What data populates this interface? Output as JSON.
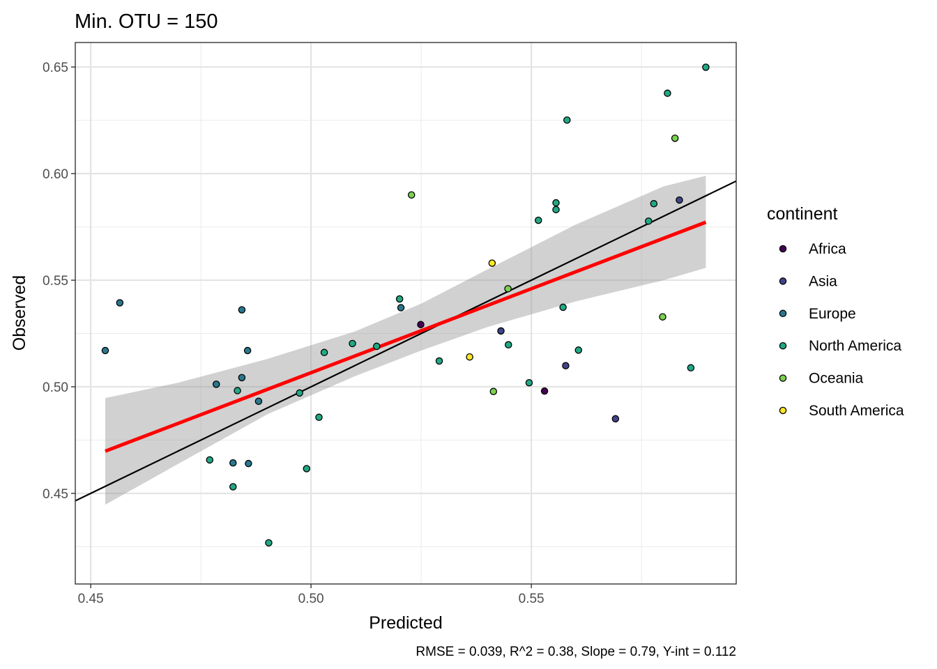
{
  "chart_data": {
    "type": "scatter",
    "title": "Min. OTU = 150",
    "xlabel": "Predicted",
    "ylabel": "Observed",
    "caption": "RMSE = 0.039, R^2 = 0.38, Slope = 0.79, Y-int = 0.112",
    "xlim": [
      0.4465,
      0.5965
    ],
    "ylim": [
      0.4075,
      0.6615
    ],
    "x_ticks": [
      0.45,
      0.5,
      0.55
    ],
    "x_tick_labels": [
      "0.45",
      "0.50",
      "0.55"
    ],
    "y_ticks": [
      0.45,
      0.5,
      0.55,
      0.6,
      0.65
    ],
    "y_tick_labels": [
      "0.45",
      "0.50",
      "0.55",
      "0.60",
      "0.65"
    ],
    "grid": true,
    "legend": {
      "title": "continent",
      "placement": "right",
      "entries": [
        {
          "name": "Africa",
          "color": "#440154"
        },
        {
          "name": "Asia",
          "color": "#414487"
        },
        {
          "name": "Europe",
          "color": "#2a788e"
        },
        {
          "name": "North America",
          "color": "#22a884"
        },
        {
          "name": "Oceania",
          "color": "#7ad151"
        },
        {
          "name": "South America",
          "color": "#fde725"
        }
      ]
    },
    "reference_line": {
      "slope": 1,
      "intercept": 0,
      "color": "#000000"
    },
    "fit_line": {
      "x": [
        0.4533,
        0.5896
      ],
      "y": [
        0.4698,
        0.5772
      ],
      "color": "#ff0000"
    },
    "confidence_band": {
      "x": [
        0.4533,
        0.47,
        0.49,
        0.51,
        0.525,
        0.54,
        0.56,
        0.58,
        0.5896
      ],
      "lower": [
        0.4447,
        0.464,
        0.487,
        0.505,
        0.517,
        0.528,
        0.54,
        0.55,
        0.5558
      ],
      "upper": [
        0.4947,
        0.502,
        0.513,
        0.526,
        0.539,
        0.555,
        0.576,
        0.594,
        0.599
      ],
      "color": "#999999"
    },
    "points": [
      {
        "x": 0.4533,
        "y": 0.517,
        "group": "Europe"
      },
      {
        "x": 0.4566,
        "y": 0.5394,
        "group": "Europe"
      },
      {
        "x": 0.477,
        "y": 0.4657,
        "group": "North America"
      },
      {
        "x": 0.4785,
        "y": 0.5012,
        "group": "Europe"
      },
      {
        "x": 0.4823,
        "y": 0.4643,
        "group": "Europe"
      },
      {
        "x": 0.4823,
        "y": 0.4531,
        "group": "North America"
      },
      {
        "x": 0.4833,
        "y": 0.4982,
        "group": "North America"
      },
      {
        "x": 0.4843,
        "y": 0.5361,
        "group": "Europe"
      },
      {
        "x": 0.4843,
        "y": 0.5043,
        "group": "Europe"
      },
      {
        "x": 0.4856,
        "y": 0.517,
        "group": "Europe"
      },
      {
        "x": 0.4858,
        "y": 0.464,
        "group": "Europe"
      },
      {
        "x": 0.4881,
        "y": 0.4932,
        "group": "Europe"
      },
      {
        "x": 0.4904,
        "y": 0.4268,
        "group": "North America"
      },
      {
        "x": 0.4974,
        "y": 0.4971,
        "group": "North America"
      },
      {
        "x": 0.499,
        "y": 0.4616,
        "group": "North America"
      },
      {
        "x": 0.5018,
        "y": 0.4857,
        "group": "North America"
      },
      {
        "x": 0.503,
        "y": 0.5161,
        "group": "North America"
      },
      {
        "x": 0.5094,
        "y": 0.5203,
        "group": "North America"
      },
      {
        "x": 0.5149,
        "y": 0.519,
        "group": "North America"
      },
      {
        "x": 0.5201,
        "y": 0.5412,
        "group": "North America"
      },
      {
        "x": 0.5204,
        "y": 0.5371,
        "group": "Europe"
      },
      {
        "x": 0.5228,
        "y": 0.59,
        "group": "Oceania"
      },
      {
        "x": 0.5249,
        "y": 0.5292,
        "group": "Africa"
      },
      {
        "x": 0.5291,
        "y": 0.5121,
        "group": "North America"
      },
      {
        "x": 0.536,
        "y": 0.514,
        "group": "South America"
      },
      {
        "x": 0.5411,
        "y": 0.558,
        "group": "South America"
      },
      {
        "x": 0.5414,
        "y": 0.4978,
        "group": "Oceania"
      },
      {
        "x": 0.5431,
        "y": 0.5262,
        "group": "Asia"
      },
      {
        "x": 0.5447,
        "y": 0.546,
        "group": "Oceania"
      },
      {
        "x": 0.5448,
        "y": 0.5197,
        "group": "North America"
      },
      {
        "x": 0.5495,
        "y": 0.5019,
        "group": "North America"
      },
      {
        "x": 0.5516,
        "y": 0.5781,
        "group": "North America"
      },
      {
        "x": 0.553,
        "y": 0.498,
        "group": "Africa"
      },
      {
        "x": 0.5556,
        "y": 0.5863,
        "group": "North America"
      },
      {
        "x": 0.5556,
        "y": 0.5831,
        "group": "North America"
      },
      {
        "x": 0.5572,
        "y": 0.5373,
        "group": "North America"
      },
      {
        "x": 0.5578,
        "y": 0.5099,
        "group": "Asia"
      },
      {
        "x": 0.5581,
        "y": 0.6251,
        "group": "North America"
      },
      {
        "x": 0.5607,
        "y": 0.5172,
        "group": "North America"
      },
      {
        "x": 0.5691,
        "y": 0.485,
        "group": "Asia"
      },
      {
        "x": 0.5766,
        "y": 0.5777,
        "group": "North America"
      },
      {
        "x": 0.5778,
        "y": 0.5859,
        "group": "North America"
      },
      {
        "x": 0.5798,
        "y": 0.5328,
        "group": "Oceania"
      },
      {
        "x": 0.5809,
        "y": 0.6377,
        "group": "North America"
      },
      {
        "x": 0.5826,
        "y": 0.6166,
        "group": "Oceania"
      },
      {
        "x": 0.5836,
        "y": 0.5876,
        "group": "Asia"
      },
      {
        "x": 0.5862,
        "y": 0.5089,
        "group": "North America"
      },
      {
        "x": 0.5896,
        "y": 0.6499,
        "group": "North America"
      }
    ]
  }
}
